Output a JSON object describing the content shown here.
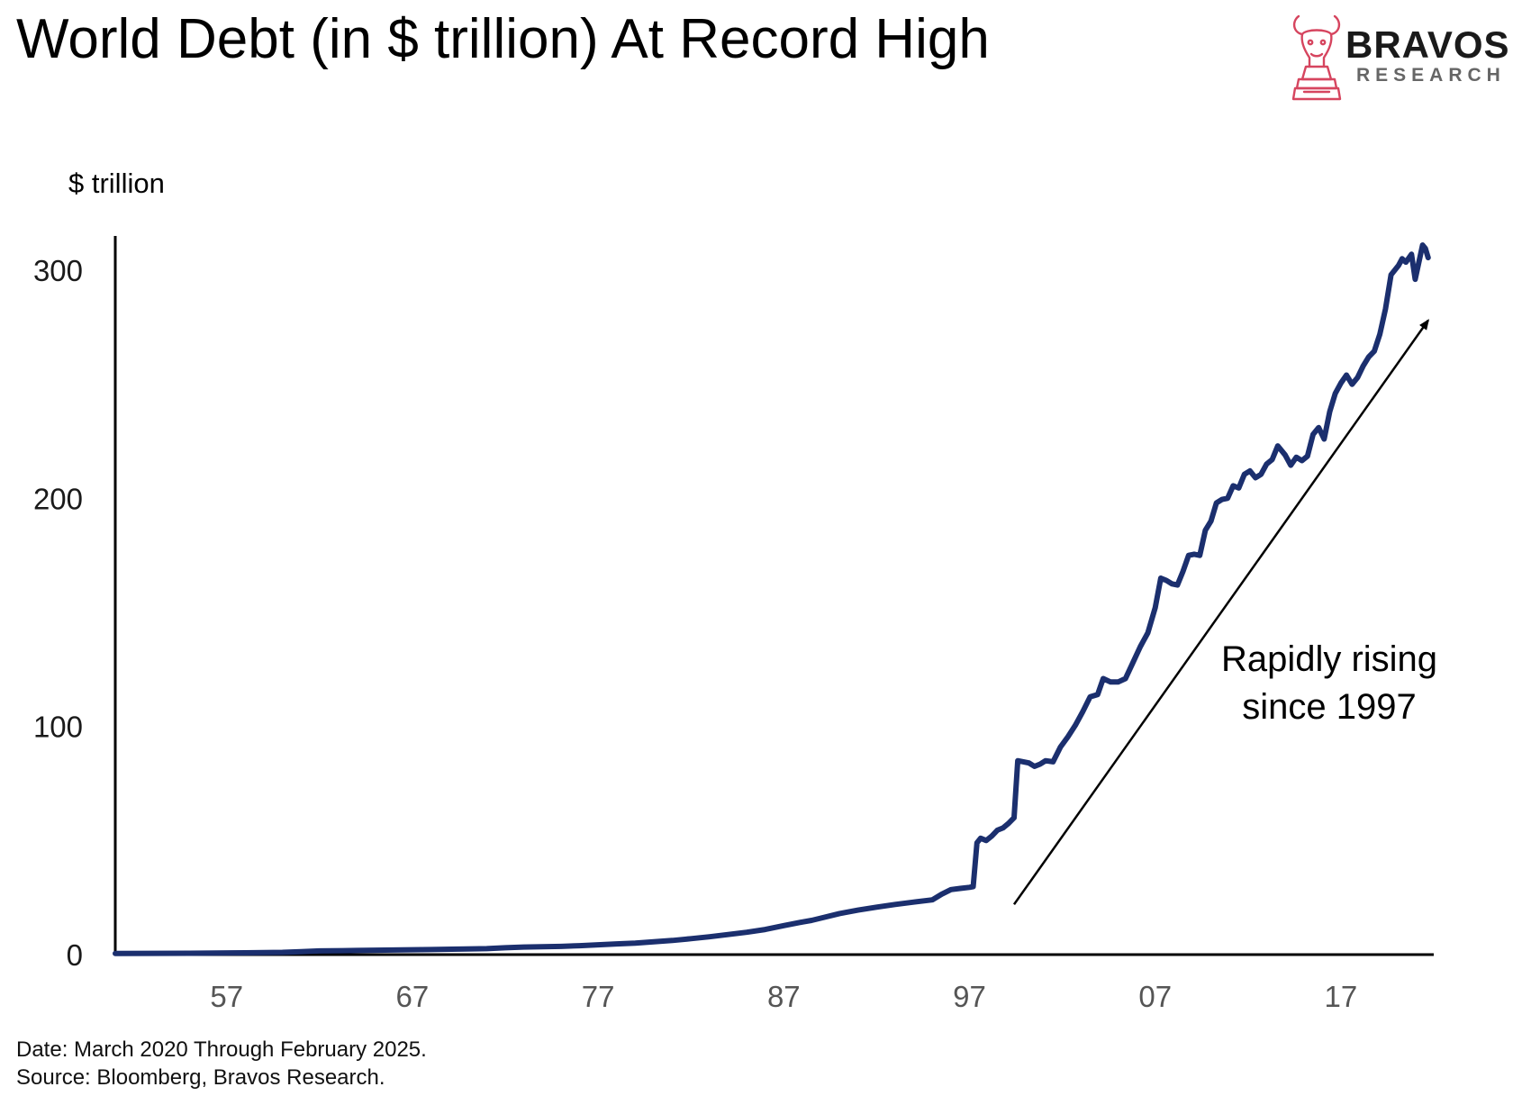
{
  "header": {
    "title": "World Debt (in $ trillion) At Record High"
  },
  "brand": {
    "name": "BRAVOS",
    "sub": "RESEARCH",
    "logo_icon": "bull-chess-knight-icon",
    "logo_color": "#d6455f"
  },
  "footer": {
    "date_note": "Date: March 2020 Through February 2025.",
    "source_note": "Source: Bloomberg, Bravos Research."
  },
  "chart_data": {
    "type": "line",
    "title": "World Debt (in $ trillion) At Record High",
    "ylabel": "$ trillion",
    "xlabel": "",
    "xlim": [
      1951,
      2022
    ],
    "ylim": [
      0,
      315
    ],
    "yticks": [
      0,
      100,
      200,
      300
    ],
    "ytick_labels": [
      "0",
      "100",
      "200",
      "300"
    ],
    "xticks": [
      1957,
      1967,
      1977,
      1987,
      1997,
      2007,
      2017
    ],
    "xtick_labels": [
      "57",
      "67",
      "77",
      "87",
      "97",
      "07",
      "17"
    ],
    "grid": false,
    "legend": "none",
    "line_color": "#1b2f6e",
    "annotation": {
      "lines": [
        "Rapidly rising",
        "since 1997"
      ],
      "arrow_from": [
        1999.4,
        22
      ],
      "arrow_to": [
        2021.7,
        278
      ]
    },
    "series": [
      {
        "name": "",
        "points": [
          [
            1951.0,
            0.5
          ],
          [
            1955.0,
            0.6
          ],
          [
            1958.0,
            0.8
          ],
          [
            1960.0,
            1.0
          ],
          [
            1961.0,
            1.3
          ],
          [
            1962.0,
            1.6
          ],
          [
            1964.0,
            1.8
          ],
          [
            1966.0,
            2.0
          ],
          [
            1968.0,
            2.2
          ],
          [
            1969.5,
            2.4
          ],
          [
            1971.0,
            2.6
          ],
          [
            1972.0,
            3.0
          ],
          [
            1973.0,
            3.3
          ],
          [
            1975.0,
            3.6
          ],
          [
            1976.0,
            3.9
          ],
          [
            1977.0,
            4.3
          ],
          [
            1978.0,
            4.7
          ],
          [
            1979.0,
            5.0
          ],
          [
            1980.0,
            5.6
          ],
          [
            1981.0,
            6.2
          ],
          [
            1982.0,
            7.0
          ],
          [
            1983.0,
            7.8
          ],
          [
            1984.0,
            8.8
          ],
          [
            1985.0,
            9.8
          ],
          [
            1986.0,
            11.0
          ],
          [
            1987.0,
            12.7
          ],
          [
            1988.0,
            14.3
          ],
          [
            1988.5,
            15.0
          ],
          [
            1989.0,
            16.0
          ],
          [
            1990.0,
            18.0
          ],
          [
            1991.0,
            19.5
          ],
          [
            1992.0,
            20.8
          ],
          [
            1993.0,
            22.0
          ],
          [
            1994.0,
            23.0
          ],
          [
            1995.0,
            24.0
          ],
          [
            1995.5,
            26.5
          ],
          [
            1996.0,
            28.5
          ],
          [
            1996.5,
            29.0
          ],
          [
            1997.0,
            29.5
          ],
          [
            1997.2,
            29.8
          ],
          [
            1997.4,
            49.0
          ],
          [
            1997.6,
            51.0
          ],
          [
            1997.9,
            50.0
          ],
          [
            1998.2,
            52.0
          ],
          [
            1998.5,
            54.5
          ],
          [
            1998.8,
            55.5
          ],
          [
            1999.1,
            57.5
          ],
          [
            1999.4,
            60.0
          ],
          [
            1999.6,
            85.0
          ],
          [
            1999.9,
            84.5
          ],
          [
            2000.2,
            84.0
          ],
          [
            2000.5,
            82.5
          ],
          [
            2000.8,
            83.5
          ],
          [
            2001.1,
            85.0
          ],
          [
            2001.5,
            84.5
          ],
          [
            2001.9,
            91.0
          ],
          [
            2002.3,
            95.5
          ],
          [
            2002.7,
            100.5
          ],
          [
            2003.1,
            106.5
          ],
          [
            2003.5,
            113.0
          ],
          [
            2003.9,
            114.0
          ],
          [
            2004.2,
            121.0
          ],
          [
            2004.6,
            119.5
          ],
          [
            2005.0,
            119.5
          ],
          [
            2005.4,
            121.0
          ],
          [
            2005.8,
            128.0
          ],
          [
            2006.2,
            135.0
          ],
          [
            2006.6,
            141.0
          ],
          [
            2007.0,
            152.0
          ],
          [
            2007.3,
            165.0
          ],
          [
            2007.6,
            164.0
          ],
          [
            2007.9,
            162.5
          ],
          [
            2008.2,
            162.0
          ],
          [
            2008.5,
            168.0
          ],
          [
            2008.8,
            175.0
          ],
          [
            2009.1,
            175.5
          ],
          [
            2009.4,
            175.0
          ],
          [
            2009.7,
            186.0
          ],
          [
            2010.0,
            190.0
          ],
          [
            2010.3,
            198.0
          ],
          [
            2010.6,
            199.5
          ],
          [
            2010.9,
            200.0
          ],
          [
            2011.2,
            205.5
          ],
          [
            2011.5,
            204.5
          ],
          [
            2011.8,
            210.5
          ],
          [
            2012.1,
            212.0
          ],
          [
            2012.4,
            209.0
          ],
          [
            2012.7,
            210.5
          ],
          [
            2013.0,
            215.0
          ],
          [
            2013.3,
            217.0
          ],
          [
            2013.6,
            223.0
          ],
          [
            2014.0,
            219.0
          ],
          [
            2014.3,
            214.5
          ],
          [
            2014.6,
            218.0
          ],
          [
            2014.9,
            216.5
          ],
          [
            2015.2,
            218.5
          ],
          [
            2015.5,
            228.0
          ],
          [
            2015.8,
            231.0
          ],
          [
            2016.1,
            226.0
          ],
          [
            2016.4,
            238.0
          ],
          [
            2016.7,
            246.0
          ],
          [
            2017.0,
            250.5
          ],
          [
            2017.3,
            254.0
          ],
          [
            2017.6,
            250.0
          ],
          [
            2017.9,
            253.0
          ],
          [
            2018.2,
            258.0
          ],
          [
            2018.5,
            262.0
          ],
          [
            2018.8,
            264.5
          ],
          [
            2019.1,
            272.0
          ],
          [
            2019.4,
            283.0
          ],
          [
            2019.7,
            298.0
          ],
          [
            2019.9,
            300.0
          ],
          [
            2020.1,
            302.0
          ],
          [
            2020.3,
            305.0
          ],
          [
            2020.5,
            303.5
          ],
          [
            2020.8,
            307.0
          ],
          [
            2021.0,
            296.0
          ],
          [
            2021.2,
            303.5
          ],
          [
            2021.4,
            311.0
          ],
          [
            2021.55,
            309.5
          ],
          [
            2021.7,
            305.5
          ]
        ]
      }
    ]
  }
}
